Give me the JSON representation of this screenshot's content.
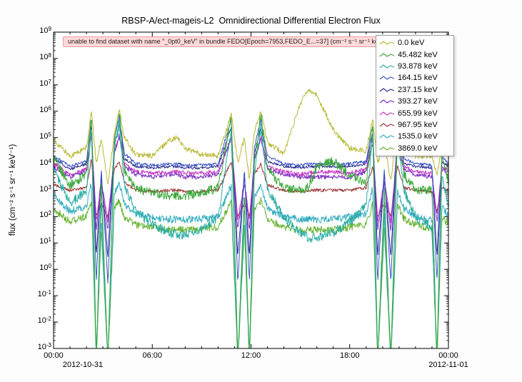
{
  "chart_data": {
    "type": "line",
    "title": "RBSP-A/ect-mageis-L2  Omnidirectional Differential Electron Flux",
    "warning": "unable to find dataset with name \"_0pt0_keV\" in bundle FEDO[Epoch=7953,FEDO_E...=37] (cm⁻² s⁻¹ sr⁻¹ keV⁻¹)",
    "ylabel": "flux (cm⁻² s⁻¹ sr⁻¹ keV⁻¹)",
    "y_axis": {
      "scale": "log",
      "min_exp": -3,
      "max_exp": 9
    },
    "x_axis": {
      "start_hour": 0,
      "end_hour": 24,
      "major_tick_hours": 6,
      "minor_tick_hours": 1,
      "tick_labels": [
        "00:00",
        "06:00",
        "12:00",
        "18:00",
        "00:00"
      ],
      "date_left": "2012-10-31",
      "date_right": "2012-11-01"
    },
    "legend_position": "top-right",
    "x_units": "hours of day",
    "y_units": "log10 of flux",
    "t": [
      0,
      1,
      2,
      2.3,
      2.6,
      2.9,
      3.3,
      3.7,
      4,
      4.3,
      5,
      6,
      7,
      7.5,
      8,
      9,
      10,
      10.8,
      11.2,
      11.6,
      11.9,
      12.2,
      12.6,
      13,
      14,
      15,
      15.5,
      16,
      17,
      18,
      19,
      19.4,
      19.7,
      20.1,
      20.5,
      20.9,
      21.3,
      22,
      23,
      23.3,
      23.6,
      24
    ],
    "series": [
      {
        "name": "0.0 keV",
        "color": "#b8ba35",
        "noise": 0.1,
        "logv": [
          4.9,
          4.3,
          4.6,
          6,
          4,
          5,
          3.2,
          5.2,
          6.05,
          5,
          4.35,
          4.3,
          4.9,
          5,
          4.6,
          4.35,
          4.3,
          5.9,
          4,
          5,
          3.4,
          5.2,
          6,
          4.8,
          4.4,
          6.3,
          6.85,
          6.6,
          5.3,
          4.6,
          4.5,
          5.7,
          4,
          4.9,
          3.3,
          5.6,
          4.8,
          4.3,
          4.3,
          3.6,
          4.6,
          4.3
        ]
      },
      {
        "name": "45.482 keV",
        "color": "#3aa83a",
        "noise": 0.18,
        "logv": [
          4.2,
          3.2,
          3.6,
          5.9,
          -3.5,
          3.3,
          -3.5,
          5,
          5.95,
          3.8,
          3.1,
          2.9,
          2.8,
          2.8,
          2.8,
          2.9,
          3.1,
          5.8,
          -3.5,
          3,
          -3.5,
          4,
          5.9,
          3.8,
          3.1,
          3,
          3.1,
          3.9,
          4.1,
          3.6,
          3.3,
          5.6,
          -3.5,
          3,
          -3.5,
          5.5,
          3.6,
          3,
          3,
          -3.5,
          4.4,
          3.3
        ]
      },
      {
        "name": "93.878 keV",
        "color": "#2aada5",
        "noise": 0.18,
        "logv": [
          3.8,
          2.5,
          3,
          5.5,
          -3.5,
          2.8,
          -3.5,
          4.6,
          5.5,
          3.2,
          2.2,
          1.7,
          1.4,
          1.3,
          1.3,
          1.5,
          2,
          5.3,
          -3.5,
          2.6,
          -3.5,
          3.6,
          5.4,
          3,
          2,
          1.4,
          1.2,
          1.2,
          1.4,
          1.8,
          2.4,
          5.2,
          -3.5,
          2.6,
          -3.5,
          5,
          3,
          2,
          1.6,
          -3.5,
          3.6,
          2.4
        ]
      },
      {
        "name": "164.15 keV",
        "color": "#3c55c8",
        "noise": 0.06,
        "logv": [
          4.3,
          3.9,
          4.1,
          5.8,
          -0.5,
          3.8,
          -0.5,
          5,
          5.8,
          4.4,
          4,
          3.95,
          4,
          4,
          3.95,
          3.95,
          4,
          5.7,
          -0.5,
          3.8,
          -0.5,
          4.6,
          5.7,
          4.3,
          4,
          3.95,
          4,
          4,
          4,
          4,
          4.1,
          5.5,
          -0.5,
          3.8,
          -0.5,
          5.4,
          4.2,
          4,
          3.95,
          -0.5,
          4.3,
          4
        ]
      },
      {
        "name": "237.15 keV",
        "color": "#2a2e8f",
        "noise": 0.05,
        "logv": [
          4.2,
          3.8,
          4,
          5.5,
          0.5,
          3.6,
          0.5,
          4.8,
          5.5,
          4.2,
          3.9,
          3.85,
          3.9,
          3.9,
          3.85,
          3.85,
          3.9,
          5.4,
          0.5,
          3.6,
          0.5,
          4.4,
          5.4,
          4.1,
          3.9,
          3.85,
          3.9,
          3.9,
          3.9,
          3.9,
          4,
          5.2,
          0.5,
          3.6,
          0.5,
          5.1,
          4,
          3.9,
          3.85,
          0.5,
          4.1,
          3.9
        ]
      },
      {
        "name": "393.27 keV",
        "color": "#7e33c2",
        "noise": 0.08,
        "logv": [
          3.9,
          3.5,
          3.7,
          5.1,
          1.5,
          3.3,
          1.5,
          4.5,
          5,
          3.9,
          3.6,
          3.5,
          3.6,
          3.6,
          3.5,
          3.5,
          3.6,
          5,
          1.5,
          3.3,
          1.5,
          4.1,
          5,
          3.8,
          3.6,
          3.5,
          3.5,
          3.5,
          3.5,
          3.5,
          3.7,
          4.8,
          1.5,
          3.3,
          1.5,
          4.7,
          3.8,
          3.6,
          3.5,
          1.8,
          3.8,
          3.6
        ]
      },
      {
        "name": "655.99 keV",
        "color": "#c438c4",
        "noise": 0.08,
        "logv": [
          4,
          3.6,
          3.8,
          5.1,
          1.8,
          3.4,
          1.8,
          4.4,
          5.1,
          4,
          3.7,
          3.65,
          3.7,
          3.7,
          3.65,
          3.65,
          3.7,
          5,
          1.8,
          3.4,
          1.8,
          4.2,
          5,
          3.9,
          3.7,
          3.6,
          3.65,
          3.7,
          3.7,
          3.65,
          3.8,
          4.9,
          1.8,
          3.4,
          1.8,
          4.8,
          3.9,
          3.7,
          3.65,
          2,
          3.9,
          3.7
        ]
      },
      {
        "name": "967.95 keV",
        "color": "#9e3434",
        "noise": 0.06,
        "logv": [
          3.2,
          3,
          3.1,
          4.2,
          2,
          2.5,
          2,
          3.8,
          4.1,
          3.3,
          3,
          2.95,
          3,
          3,
          2.95,
          2.95,
          3,
          4.1,
          2,
          2.5,
          2,
          3.6,
          4,
          3.2,
          3,
          2.95,
          3,
          3,
          3,
          3,
          3.1,
          3.9,
          2,
          2.5,
          2,
          3.9,
          3.1,
          3,
          2.95,
          2.2,
          3.1,
          3
        ]
      },
      {
        "name": "1535.0 keV",
        "color": "#35aec0",
        "noise": 0.14,
        "logv": [
          2.8,
          2.2,
          2.4,
          3.3,
          -3.5,
          2,
          -3.5,
          2.9,
          3.3,
          2.5,
          2.1,
          2,
          1.9,
          1.9,
          1.9,
          1.9,
          2,
          3.2,
          -3.5,
          2,
          -3.5,
          2.7,
          3.2,
          2.3,
          2,
          1.9,
          1.9,
          1.9,
          1.9,
          2,
          2.1,
          3.1,
          -3.5,
          2,
          -3.5,
          3,
          2.3,
          2,
          1.9,
          -3.5,
          2.4,
          2
        ]
      },
      {
        "name": "3869.0 keV",
        "color": "#67b22f",
        "noise": 0.14,
        "logv": [
          2.3,
          1.8,
          2,
          2.6,
          -3.5,
          1.6,
          -3.5,
          2.4,
          2.6,
          2,
          1.7,
          1.6,
          1.5,
          1.5,
          1.5,
          1.5,
          1.6,
          2.6,
          -3.5,
          1.6,
          -3.5,
          2.2,
          2.6,
          1.9,
          1.6,
          1.5,
          1.5,
          1.5,
          1.5,
          1.6,
          1.7,
          2.5,
          -3.5,
          1.6,
          -3.5,
          2.5,
          1.9,
          1.7,
          1.5,
          -3.5,
          2,
          1.7
        ]
      }
    ]
  }
}
